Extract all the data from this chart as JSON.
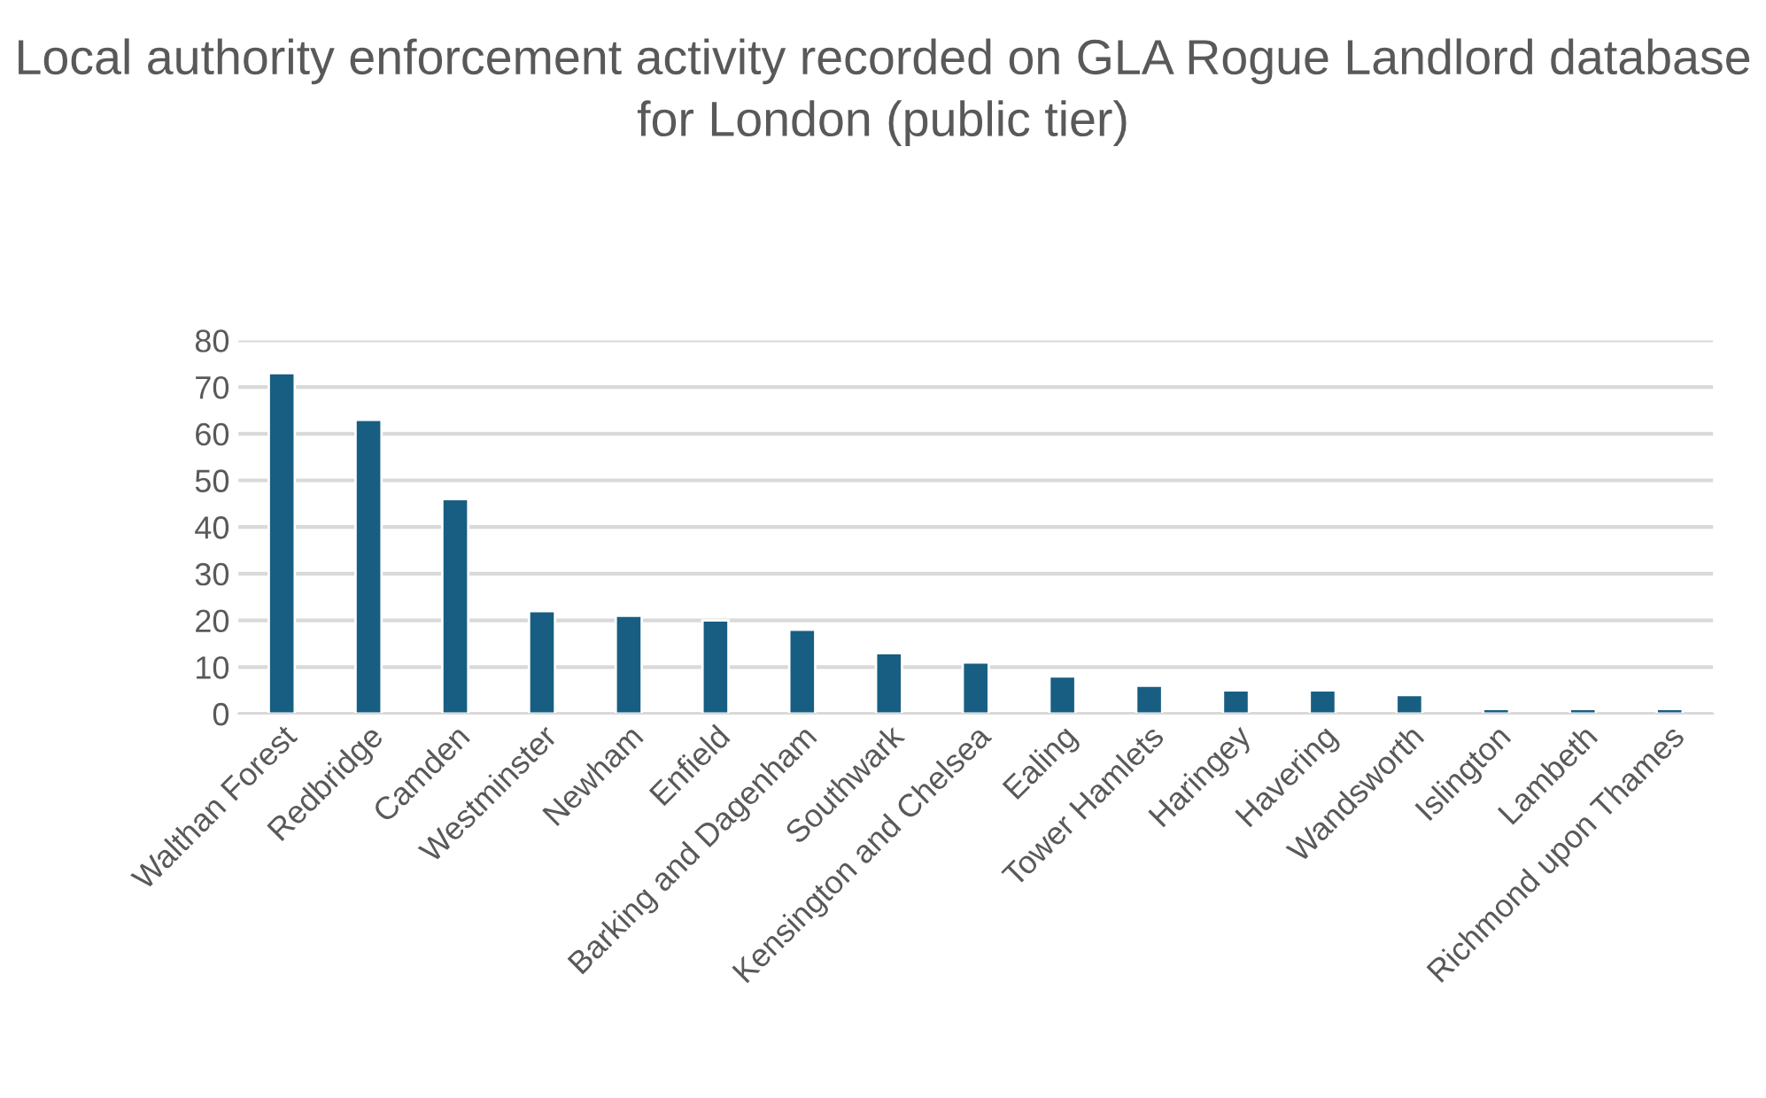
{
  "chart_data": {
    "type": "bar",
    "title": "Local authority enforcement activity recorded on GLA Rogue Landlord database for London (public tier)",
    "categories": [
      "Walthan Forest",
      "Redbridge",
      "Camden",
      "Westminster",
      "Newham",
      "Enfield",
      "Barking and Dagenham",
      "Southwark",
      "Kensington and Chelsea",
      "Ealing",
      "Tower Hamlets",
      "Haringey",
      "Havering",
      "Wandsworth",
      "Islington",
      "Lambeth",
      "Richmond upon Thames"
    ],
    "values": [
      73,
      63,
      46,
      22,
      21,
      20,
      18,
      13,
      11,
      8,
      6,
      5,
      5,
      4,
      1,
      1,
      1
    ],
    "color": "#175e82",
    "ylim": [
      0,
      80
    ],
    "yticks": [
      0,
      10,
      20,
      30,
      40,
      50,
      60,
      70,
      80
    ],
    "grid": "y"
  }
}
